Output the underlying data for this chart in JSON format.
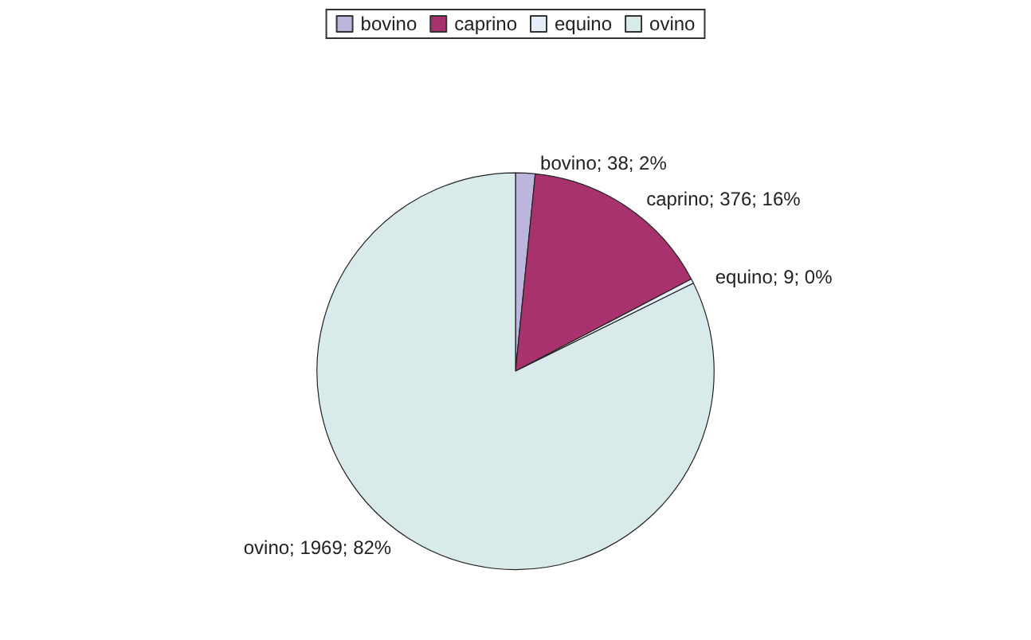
{
  "chart_data": {
    "type": "pie",
    "categories": [
      "bovino",
      "caprino",
      "equino",
      "ovino"
    ],
    "values": [
      38,
      376,
      9,
      1969
    ],
    "colors": [
      "#bdb6dc",
      "#a8326e",
      "#e6eefa",
      "#d8eaea"
    ],
    "value_labels": [
      "bovino; 38; 2%",
      "caprino; 376; 16%",
      "equino; 9; 0%",
      "ovino; 1969; 82%"
    ],
    "legend": "top"
  }
}
